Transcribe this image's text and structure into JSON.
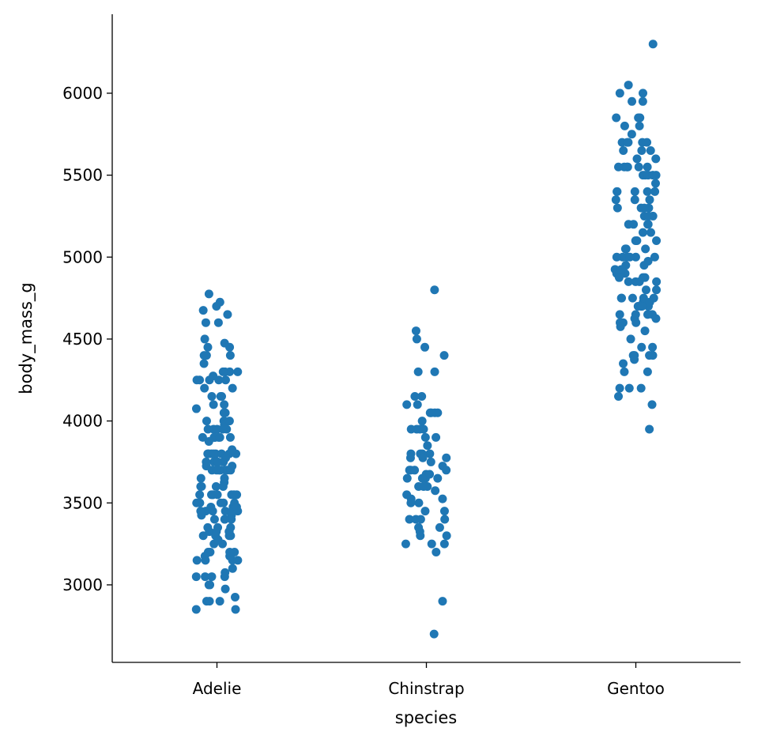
{
  "chart_data": {
    "type": "scatter",
    "subtype": "stripplot",
    "title": "",
    "xlabel": "species",
    "ylabel": "body_mass_g",
    "categories": [
      "Adelie",
      "Chinstrap",
      "Gentoo"
    ],
    "xlim": [
      -0.5,
      2.5
    ],
    "ylim": [
      2527,
      6482
    ],
    "yticks": [
      3000,
      3500,
      4000,
      4500,
      5000,
      5500,
      6000
    ],
    "grid": false,
    "color": "#1f77b4",
    "series": [
      {
        "name": "Adelie",
        "values": [
          3750,
          3800,
          3250,
          3450,
          3650,
          3625,
          4675,
          3475,
          4250,
          3300,
          3700,
          3200,
          3800,
          4400,
          3700,
          3450,
          4500,
          3325,
          4200,
          3400,
          3600,
          3800,
          3950,
          3800,
          3800,
          3550,
          3200,
          3150,
          3950,
          3250,
          3900,
          3300,
          3900,
          3325,
          4150,
          3950,
          3550,
          3300,
          4650,
          3150,
          3900,
          3100,
          4400,
          3000,
          4600,
          3425,
          2975,
          3450,
          4150,
          3500,
          4300,
          3450,
          4050,
          2900,
          3700,
          3550,
          3800,
          2850,
          3750,
          3150,
          4400,
          3600,
          4050,
          2850,
          3950,
          3350,
          4100,
          3050,
          4450,
          3600,
          3900,
          3550,
          4150,
          3700,
          4250,
          3700,
          3900,
          3550,
          4000,
          3200,
          4700,
          3800,
          4200,
          3350,
          3550,
          3800,
          3500,
          3950,
          3600,
          3550,
          4300,
          3400,
          4450,
          3300,
          4300,
          3700,
          4350,
          2900,
          4100,
          3725,
          4725,
          3075,
          4250,
          2925,
          3550,
          3750,
          3900,
          3175,
          4775,
          3825,
          4600,
          3200,
          4275,
          3900,
          4075,
          2900,
          3775,
          3350,
          3325,
          3150,
          3500,
          3450,
          3875,
          3050,
          4000,
          3275,
          4300,
          3050,
          4000,
          3325,
          3500,
          3500,
          4475,
          3425,
          3900,
          3175,
          3975,
          3400,
          4250,
          3400,
          3475,
          3050,
          3725,
          3000,
          3650,
          4250,
          3475,
          3450,
          3750,
          3700,
          4000
        ]
      },
      {
        "name": "Chinstrap",
        "values": [
          3500,
          3900,
          3650,
          3525,
          3725,
          3950,
          3250,
          3750,
          4150,
          3700,
          3800,
          3775,
          3700,
          4050,
          3575,
          4050,
          3300,
          3700,
          3450,
          4400,
          3600,
          3400,
          2900,
          3800,
          3300,
          4150,
          3400,
          3800,
          3700,
          4550,
          3200,
          4300,
          3350,
          4100,
          3600,
          3900,
          3850,
          4800,
          2700,
          4500,
          3950,
          3650,
          3550,
          3500,
          3675,
          4450,
          3400,
          4300,
          3250,
          3675,
          3325,
          3950,
          3600,
          4050,
          3350,
          3450,
          3250,
          4050,
          3800,
          3525,
          3950,
          3650,
          3650,
          4000,
          3400,
          3775,
          4100,
          3775
        ]
      },
      {
        "name": "Gentoo",
        "values": [
          4500,
          5700,
          4450,
          5700,
          5400,
          4550,
          4800,
          5200,
          4400,
          5150,
          4650,
          5550,
          4650,
          5850,
          4200,
          5850,
          4150,
          6300,
          4800,
          5350,
          5700,
          5000,
          4400,
          5050,
          5000,
          5100,
          4100,
          5650,
          4600,
          5550,
          5250,
          4700,
          5050,
          6050,
          5150,
          5400,
          4950,
          5250,
          4350,
          5350,
          3950,
          5700,
          4300,
          4750,
          5550,
          4900,
          4200,
          5400,
          5100,
          5300,
          4850,
          5300,
          4400,
          5000,
          4900,
          5050,
          4300,
          5000,
          4450,
          5550,
          4200,
          5300,
          4400,
          5650,
          4700,
          5700,
          4650,
          5800,
          4700,
          5550,
          4750,
          5000,
          5100,
          5200,
          4700,
          5800,
          4600,
          6000,
          4750,
          5950,
          4625,
          5450,
          4725,
          5350,
          4750,
          5600,
          4600,
          5300,
          4875,
          5550,
          4950,
          5400,
          4750,
          5650,
          4850,
          5200,
          4925,
          4875,
          4625,
          5250,
          4850,
          5600,
          4975,
          5500,
          4725,
          5500,
          4700,
          5500,
          4575,
          5500,
          5000,
          5950,
          4650,
          5500,
          4375,
          5850,
          4875,
          6000,
          4925,
          4850,
          5750,
          5200,
          5400
        ]
      }
    ]
  }
}
